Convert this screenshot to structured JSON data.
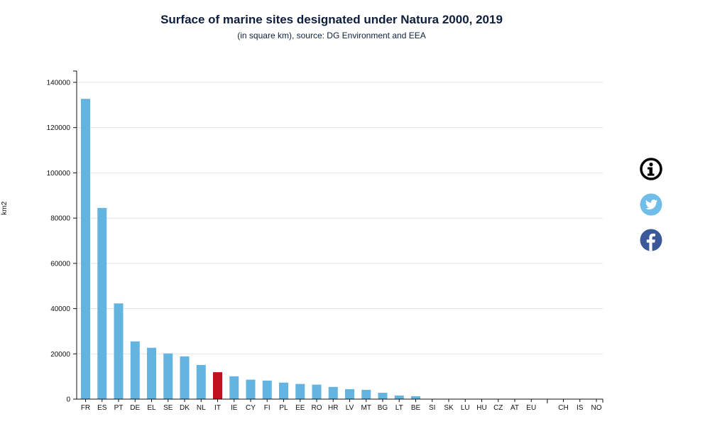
{
  "header": {
    "title": "Surface of marine sites designated under Natura 2000, 2019",
    "subtitle": "(in square km), source: DG Environment and EEA"
  },
  "colors": {
    "bar": "#63b4e0",
    "highlight": "#c0111f",
    "info": "#000000",
    "twitter": "#6fbde8",
    "facebook": "#3b5998"
  },
  "share": {
    "info_icon": "info-icon",
    "twitter_icon": "twitter-icon",
    "facebook_icon": "facebook-icon"
  },
  "chart_data": {
    "type": "bar",
    "title": "Surface of marine sites designated under Natura 2000, 2019",
    "subtitle": "(in square km), source: DG Environment and EEA",
    "xlabel": "",
    "ylabel": "km2",
    "ylim": [
      0,
      145000
    ],
    "yticks": [
      0,
      20000,
      40000,
      60000,
      80000,
      100000,
      120000,
      140000
    ],
    "grid": true,
    "highlight": "IT",
    "categories": [
      "FR",
      "ES",
      "PT",
      "DE",
      "EL",
      "SE",
      "DK",
      "NL",
      "IT",
      "IE",
      "CY",
      "FI",
      "PL",
      "EE",
      "RO",
      "HR",
      "LV",
      "MT",
      "BG",
      "LT",
      "BE",
      "SI",
      "SK",
      "LU",
      "HU",
      "CZ",
      "AT",
      "EU",
      "CH",
      "IS",
      "NO"
    ],
    "values": [
      132700,
      84500,
      42300,
      25500,
      22700,
      20200,
      18900,
      15100,
      11900,
      10100,
      8600,
      8200,
      7300,
      6700,
      6400,
      5400,
      4400,
      4100,
      2800,
      1600,
      1300,
      0,
      0,
      0,
      0,
      0,
      0,
      0,
      0,
      0,
      0
    ]
  }
}
